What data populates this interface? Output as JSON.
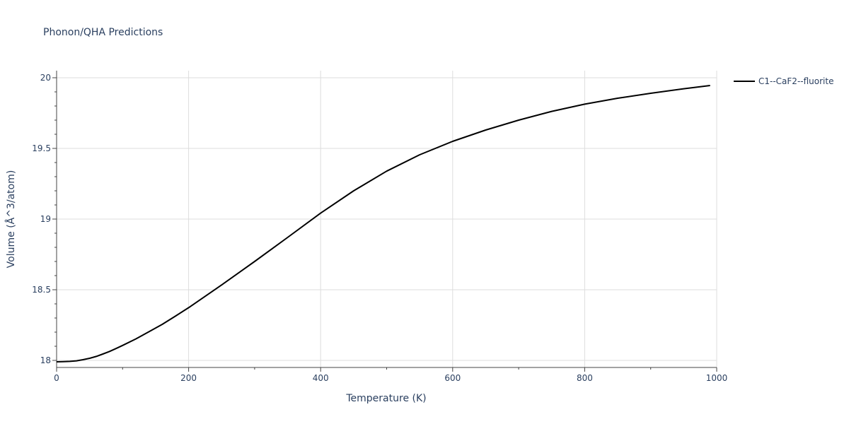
{
  "chart_data": {
    "type": "line",
    "title": "Phonon/QHA Predictions",
    "xlabel": "Temperature (K)",
    "ylabel": "Volume (Å^3/atom)",
    "xlim": [
      0,
      1000
    ],
    "ylim": [
      17.95,
      20.05
    ],
    "xticks": [
      0,
      200,
      400,
      600,
      800,
      1000
    ],
    "yticks": [
      18,
      18.5,
      19,
      19.5,
      20
    ],
    "xtick_labels": [
      "0",
      "200",
      "400",
      "600",
      "800",
      "1000"
    ],
    "ytick_labels": [
      "18",
      "18.5",
      "19",
      "19.5",
      "20"
    ],
    "grid": true,
    "legend_position": "top-right outside",
    "series": [
      {
        "name": "C1--CaF2--fluorite",
        "color": "#000000",
        "x": [
          0,
          10,
          20,
          30,
          40,
          50,
          60,
          70,
          80,
          90,
          100,
          120,
          140,
          160,
          180,
          200,
          250,
          300,
          350,
          400,
          450,
          500,
          550,
          600,
          650,
          700,
          750,
          800,
          850,
          900,
          950,
          990
        ],
        "y": [
          17.99,
          17.991,
          17.993,
          17.997,
          18.005,
          18.015,
          18.028,
          18.045,
          18.063,
          18.084,
          18.106,
          18.152,
          18.203,
          18.255,
          18.313,
          18.373,
          18.534,
          18.7,
          18.87,
          19.042,
          19.2,
          19.339,
          19.455,
          19.55,
          19.63,
          19.7,
          19.762,
          19.813,
          19.855,
          19.89,
          19.922,
          19.945
        ]
      }
    ]
  }
}
